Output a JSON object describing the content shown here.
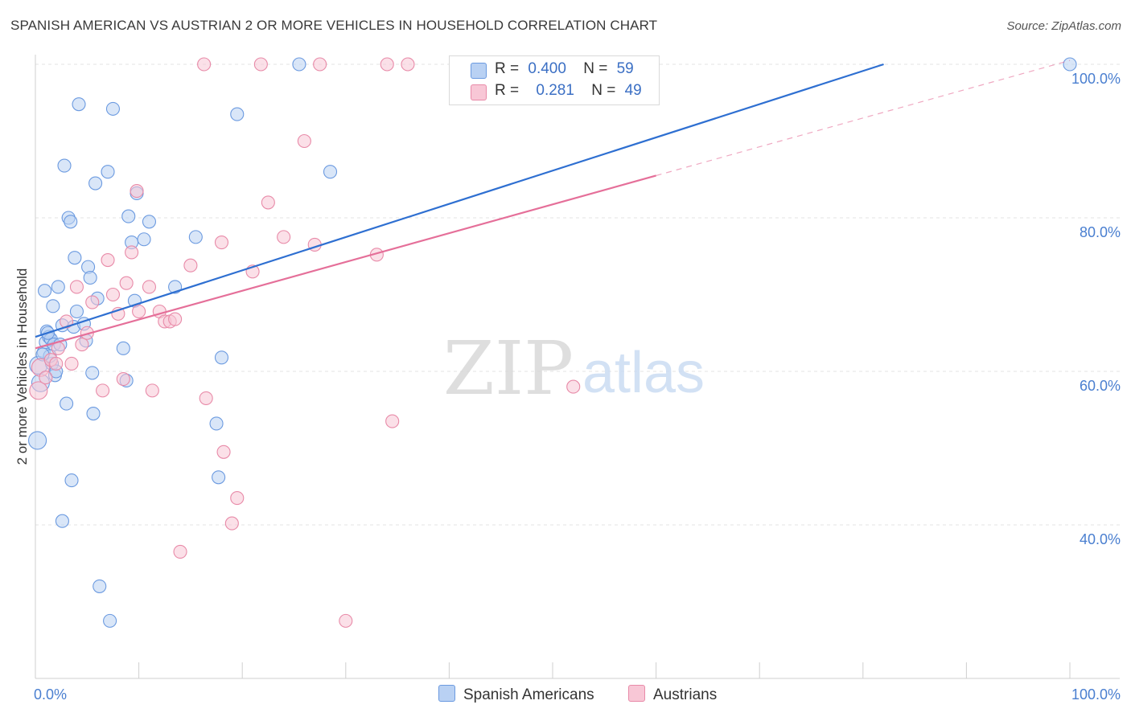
{
  "title": "SPANISH AMERICAN VS AUSTRIAN 2 OR MORE VEHICLES IN HOUSEHOLD CORRELATION CHART",
  "source": "Source: ZipAtlas.com",
  "watermark": {
    "zip": "ZIP",
    "atlas": "atlas"
  },
  "legend": {
    "r_label": "R =",
    "n_label": "N =",
    "rows": [
      {
        "r": "0.400",
        "n": "59",
        "fill": "#b9d1f3",
        "stroke": "#6b9ae0"
      },
      {
        "r": "0.281",
        "n": "49",
        "fill": "#f8c7d6",
        "stroke": "#e88aa8"
      }
    ]
  },
  "bottom_legend": [
    {
      "label": "Spanish Americans",
      "fill": "#b9d1f3",
      "stroke": "#6b9ae0"
    },
    {
      "label": "Austrians",
      "fill": "#f8c7d6",
      "stroke": "#e88aa8"
    }
  ],
  "chart_data": {
    "type": "scatter",
    "xlabel": "",
    "ylabel": "2 or more Vehicles in Household",
    "xlim": [
      0,
      100
    ],
    "ylim": [
      20,
      100
    ],
    "x_tick_labels": [
      "0.0%",
      "100.0%"
    ],
    "y_ticks": [
      {
        "value": 100,
        "label": "100.0%"
      },
      {
        "value": 80,
        "label": "80.0%"
      },
      {
        "value": 60,
        "label": "60.0%"
      },
      {
        "value": 40,
        "label": "40.0%"
      }
    ],
    "grid": true,
    "series": [
      {
        "name": "Spanish Americans",
        "color": "#6b9ae0",
        "fill": "#b9d1f3",
        "line_color": "#2e6fd1",
        "trend": {
          "x0": 0,
          "y0": 64.5,
          "x1": 82,
          "y1": 100,
          "solid_to_x": 82
        },
        "points": [
          [
            0.3,
            60.8
          ],
          [
            0.5,
            58.5
          ],
          [
            0.8,
            62.5
          ],
          [
            0.9,
            70.5
          ],
          [
            1.0,
            63.8
          ],
          [
            1.1,
            65.2
          ],
          [
            1.3,
            64.5
          ],
          [
            1.5,
            64.2
          ],
          [
            1.6,
            61.0
          ],
          [
            1.7,
            68.5
          ],
          [
            1.8,
            63.5
          ],
          [
            1.9,
            59.5
          ],
          [
            2.0,
            60.0
          ],
          [
            2.2,
            71.0
          ],
          [
            2.4,
            63.5
          ],
          [
            2.6,
            66.0
          ],
          [
            2.8,
            86.8
          ],
          [
            3.0,
            55.8
          ],
          [
            3.2,
            80.0
          ],
          [
            3.4,
            79.5
          ],
          [
            3.5,
            45.8
          ],
          [
            3.7,
            65.8
          ],
          [
            3.8,
            74.8
          ],
          [
            4.0,
            67.8
          ],
          [
            4.2,
            94.8
          ],
          [
            4.7,
            66.2
          ],
          [
            4.9,
            64.0
          ],
          [
            5.1,
            73.6
          ],
          [
            5.3,
            72.2
          ],
          [
            5.5,
            59.8
          ],
          [
            5.6,
            54.5
          ],
          [
            5.8,
            84.5
          ],
          [
            6.0,
            69.5
          ],
          [
            6.2,
            32.0
          ],
          [
            7.0,
            86.0
          ],
          [
            7.2,
            27.5
          ],
          [
            7.5,
            94.2
          ],
          [
            8.5,
            63.0
          ],
          [
            8.8,
            58.8
          ],
          [
            9.0,
            80.2
          ],
          [
            9.3,
            76.8
          ],
          [
            9.6,
            69.2
          ],
          [
            9.8,
            83.2
          ],
          [
            10.5,
            77.2
          ],
          [
            11.0,
            79.5
          ],
          [
            13.5,
            71.0
          ],
          [
            15.5,
            77.5
          ],
          [
            17.5,
            53.2
          ],
          [
            17.7,
            46.2
          ],
          [
            18.0,
            61.8
          ],
          [
            19.5,
            93.5
          ],
          [
            25.5,
            100
          ],
          [
            28.5,
            86.0
          ],
          [
            100,
            100
          ],
          [
            0.2,
            51.0
          ],
          [
            2.6,
            40.5
          ],
          [
            1.4,
            62.0
          ],
          [
            0.7,
            62.2
          ],
          [
            1.2,
            65.0
          ]
        ]
      },
      {
        "name": "Austrians",
        "color": "#e88aa8",
        "fill": "#f8c7d6",
        "line_color": "#e56f99",
        "trend": {
          "x0": 0,
          "y0": 63.0,
          "x1": 100,
          "y1": 100.5,
          "solid_to_x": 60
        },
        "points": [
          [
            0.3,
            57.5
          ],
          [
            0.5,
            60.5
          ],
          [
            1.0,
            59.2
          ],
          [
            1.5,
            61.5
          ],
          [
            2.0,
            61.0
          ],
          [
            2.2,
            63.0
          ],
          [
            3.0,
            66.5
          ],
          [
            3.5,
            61.0
          ],
          [
            4.0,
            71.0
          ],
          [
            4.5,
            63.5
          ],
          [
            5.0,
            65.0
          ],
          [
            5.5,
            69.0
          ],
          [
            6.5,
            57.5
          ],
          [
            7.0,
            74.5
          ],
          [
            7.5,
            70.0
          ],
          [
            8.0,
            67.5
          ],
          [
            8.5,
            59.0
          ],
          [
            8.8,
            71.5
          ],
          [
            9.3,
            75.5
          ],
          [
            9.8,
            83.5
          ],
          [
            10.0,
            67.8
          ],
          [
            11.0,
            71.0
          ],
          [
            11.3,
            57.5
          ],
          [
            12.0,
            67.8
          ],
          [
            12.5,
            66.5
          ],
          [
            13.0,
            66.5
          ],
          [
            13.5,
            66.8
          ],
          [
            14.0,
            36.5
          ],
          [
            15.0,
            73.8
          ],
          [
            16.3,
            100
          ],
          [
            16.5,
            56.5
          ],
          [
            18.0,
            76.8
          ],
          [
            18.2,
            49.5
          ],
          [
            19.0,
            40.2
          ],
          [
            19.5,
            43.5
          ],
          [
            21.0,
            73.0
          ],
          [
            21.8,
            100
          ],
          [
            22.5,
            82.0
          ],
          [
            24.0,
            77.5
          ],
          [
            26.0,
            90.0
          ],
          [
            27.0,
            76.5
          ],
          [
            27.5,
            100
          ],
          [
            30.0,
            27.5
          ],
          [
            33.0,
            75.2
          ],
          [
            34.0,
            100
          ],
          [
            34.5,
            53.5
          ],
          [
            36.0,
            100
          ],
          [
            52.0,
            58.0
          ],
          [
            41.0,
            100
          ]
        ]
      }
    ]
  }
}
